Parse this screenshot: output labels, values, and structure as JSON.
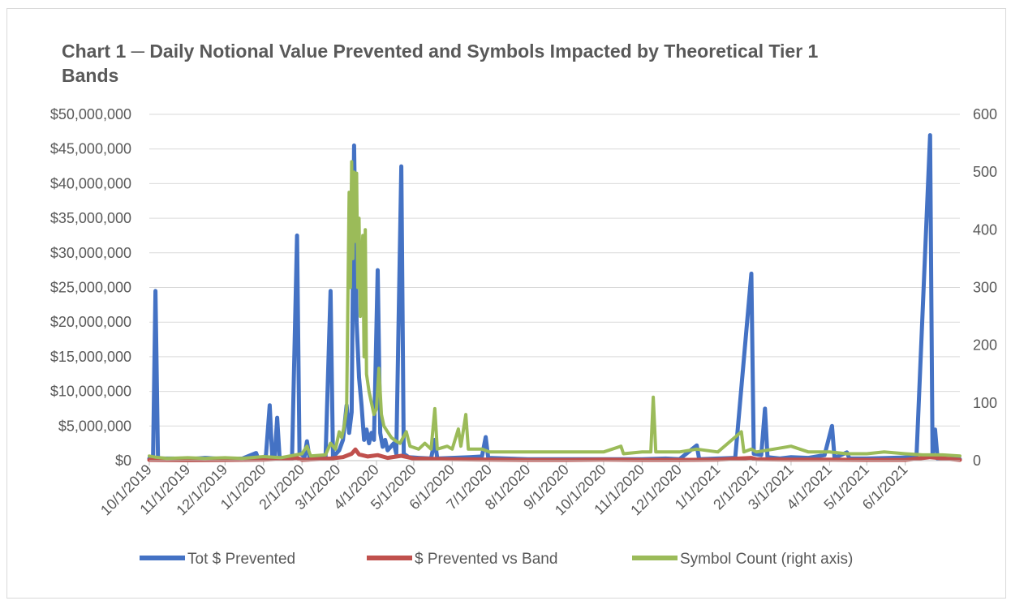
{
  "chart_data": {
    "type": "line",
    "title": "Chart 1 ─ Daily Notional Value Prevented and Symbols Impacted by Theoretical Tier 1 Bands",
    "xlabel": "",
    "ylabel": "",
    "y2label": "",
    "x_tick_labels": [
      "10/1/2019",
      "11/1/2019",
      "12/1/2019",
      "1/1/2020",
      "2/1/2020",
      "3/1/2020",
      "4/1/2020",
      "5/1/2020",
      "6/1/2020",
      "7/1/2020",
      "8/1/2020",
      "9/1/2020",
      "10/1/2020",
      "11/1/2020",
      "12/1/2020",
      "1/1/2021",
      "2/1/2021",
      "3/1/2021",
      "4/1/2021",
      "5/1/2021",
      "6/1/2021"
    ],
    "x_range": [
      "10/1/2019",
      "7/15/2021"
    ],
    "ylim": [
      0,
      50000000
    ],
    "y_tick_labels": [
      "$0",
      "$5,000,000",
      "$10,000,000",
      "$15,000,000",
      "$20,000,000",
      "$25,000,000",
      "$30,000,000",
      "$35,000,000",
      "$40,000,000",
      "$45,000,000",
      "$50,000,000"
    ],
    "y2lim": [
      0,
      600
    ],
    "y2_tick_labels": [
      "0",
      "100",
      "200",
      "300",
      "400",
      "500",
      "600"
    ],
    "grid": "horizontal",
    "legend_position": "bottom",
    "series": [
      {
        "name": "Tot $ Prevented",
        "axis": "left",
        "color": "#4472c4",
        "points": [
          [
            "10/1/2019",
            300000
          ],
          [
            "10/4/2019",
            200000
          ],
          [
            "10/6/2019",
            24500000
          ],
          [
            "10/8/2019",
            300000
          ],
          [
            "10/20/2019",
            300000
          ],
          [
            "11/1/2019",
            200000
          ],
          [
            "11/15/2019",
            400000
          ],
          [
            "12/1/2019",
            200000
          ],
          [
            "12/15/2019",
            300000
          ],
          [
            "12/26/2019",
            1100000
          ],
          [
            "12/28/2019",
            200000
          ],
          [
            "1/1/2020",
            300000
          ],
          [
            "1/3/2020",
            800000
          ],
          [
            "1/6/2020",
            8000000
          ],
          [
            "1/8/2020",
            500000
          ],
          [
            "1/10/2020",
            300000
          ],
          [
            "1/12/2020",
            6200000
          ],
          [
            "1/14/2020",
            400000
          ],
          [
            "1/24/2020",
            300000
          ],
          [
            "1/28/2020",
            32500000
          ],
          [
            "1/30/2020",
            1200000
          ],
          [
            "2/3/2020",
            500000
          ],
          [
            "2/5/2020",
            2800000
          ],
          [
            "2/7/2020",
            400000
          ],
          [
            "2/20/2020",
            400000
          ],
          [
            "2/24/2020",
            24500000
          ],
          [
            "2/26/2020",
            500000
          ],
          [
            "3/2/2020",
            1500000
          ],
          [
            "3/5/2020",
            3000000
          ],
          [
            "3/8/2020",
            8000000
          ],
          [
            "3/10/2020",
            4000000
          ],
          [
            "3/12/2020",
            7000000
          ],
          [
            "3/14/2020",
            45500000
          ],
          [
            "3/16/2020",
            20000000
          ],
          [
            "3/18/2020",
            12000000
          ],
          [
            "3/20/2020",
            8000000
          ],
          [
            "3/22/2020",
            3000000
          ],
          [
            "3/24/2020",
            4500000
          ],
          [
            "3/26/2020",
            2500000
          ],
          [
            "3/28/2020",
            4000000
          ],
          [
            "3/30/2020",
            3000000
          ],
          [
            "4/2/2020",
            27500000
          ],
          [
            "4/4/2020",
            4000000
          ],
          [
            "4/6/2020",
            2000000
          ],
          [
            "4/8/2020",
            3000000
          ],
          [
            "4/10/2020",
            1500000
          ],
          [
            "4/15/2020",
            2500000
          ],
          [
            "4/17/2020",
            1000000
          ],
          [
            "4/21/2020",
            42500000
          ],
          [
            "4/23/2020",
            1000000
          ],
          [
            "4/27/2020",
            500000
          ],
          [
            "5/5/2020",
            400000
          ],
          [
            "5/15/2020",
            300000
          ],
          [
            "5/18/2020",
            3000000
          ],
          [
            "5/20/2020",
            300000
          ],
          [
            "6/1/2020",
            400000
          ],
          [
            "6/15/2020",
            500000
          ],
          [
            "6/25/2020",
            600000
          ],
          [
            "6/28/2020",
            3400000
          ],
          [
            "6/30/2020",
            400000
          ],
          [
            "7/15/2020",
            300000
          ],
          [
            "8/1/2020",
            200000
          ],
          [
            "9/1/2020",
            200000
          ],
          [
            "10/1/2020",
            200000
          ],
          [
            "11/1/2020",
            200000
          ],
          [
            "11/20/2020",
            300000
          ],
          [
            "12/1/2020",
            200000
          ],
          [
            "12/15/2020",
            2200000
          ],
          [
            "12/17/2020",
            200000
          ],
          [
            "1/1/2021",
            300000
          ],
          [
            "1/15/2021",
            400000
          ],
          [
            "1/28/2021",
            27000000
          ],
          [
            "1/30/2021",
            1000000
          ],
          [
            "2/5/2021",
            800000
          ],
          [
            "2/8/2021",
            7500000
          ],
          [
            "2/10/2021",
            500000
          ],
          [
            "2/20/2021",
            300000
          ],
          [
            "3/1/2021",
            500000
          ],
          [
            "3/15/2021",
            400000
          ],
          [
            "3/28/2021",
            800000
          ],
          [
            "4/3/2021",
            5000000
          ],
          [
            "4/5/2021",
            400000
          ],
          [
            "4/15/2021",
            1200000
          ],
          [
            "4/17/2021",
            300000
          ],
          [
            "5/1/2021",
            300000
          ],
          [
            "5/20/2021",
            400000
          ],
          [
            "6/10/2021",
            500000
          ],
          [
            "6/21/2021",
            47000000
          ],
          [
            "6/23/2021",
            800000
          ],
          [
            "6/25/2021",
            4500000
          ],
          [
            "6/27/2021",
            300000
          ],
          [
            "7/15/2021",
            200000
          ]
        ]
      },
      {
        "name": "$ Prevented vs Band",
        "axis": "left",
        "color": "#c0504d",
        "points": [
          [
            "10/1/2019",
            100000
          ],
          [
            "11/1/2019",
            60000
          ],
          [
            "12/1/2019",
            80000
          ],
          [
            "1/1/2020",
            150000
          ],
          [
            "1/28/2020",
            400000
          ],
          [
            "2/1/2020",
            100000
          ],
          [
            "2/24/2020",
            300000
          ],
          [
            "3/5/2020",
            500000
          ],
          [
            "3/12/2020",
            1000000
          ],
          [
            "3/15/2020",
            1600000
          ],
          [
            "3/18/2020",
            900000
          ],
          [
            "3/25/2020",
            600000
          ],
          [
            "4/2/2020",
            800000
          ],
          [
            "4/10/2020",
            400000
          ],
          [
            "4/21/2020",
            700000
          ],
          [
            "5/1/2020",
            300000
          ],
          [
            "6/1/2020",
            200000
          ],
          [
            "7/1/2020",
            150000
          ],
          [
            "8/1/2020",
            100000
          ],
          [
            "9/1/2020",
            100000
          ],
          [
            "10/1/2020",
            150000
          ],
          [
            "11/1/2020",
            100000
          ],
          [
            "12/1/2020",
            100000
          ],
          [
            "1/1/2021",
            150000
          ],
          [
            "1/28/2021",
            400000
          ],
          [
            "2/1/2021",
            200000
          ],
          [
            "3/1/2021",
            150000
          ],
          [
            "4/1/2021",
            150000
          ],
          [
            "5/1/2021",
            100000
          ],
          [
            "6/1/2021",
            100000
          ],
          [
            "6/21/2021",
            500000
          ],
          [
            "7/15/2021",
            100000
          ]
        ]
      },
      {
        "name": "Symbol Count (right axis)",
        "axis": "right",
        "color": "#9bbb59",
        "points": [
          [
            "10/1/2019",
            8
          ],
          [
            "10/6/2019",
            6
          ],
          [
            "10/15/2019",
            4
          ],
          [
            "11/1/2019",
            5
          ],
          [
            "11/15/2019",
            4
          ],
          [
            "12/1/2019",
            5
          ],
          [
            "12/15/2019",
            4
          ],
          [
            "1/1/2020",
            7
          ],
          [
            "1/15/2020",
            5
          ],
          [
            "2/1/2020",
            12
          ],
          [
            "2/5/2020",
            25
          ],
          [
            "2/8/2020",
            8
          ],
          [
            "2/20/2020",
            10
          ],
          [
            "2/24/2020",
            30
          ],
          [
            "2/28/2020",
            20
          ],
          [
            "3/2/2020",
            50
          ],
          [
            "3/4/2020",
            40
          ],
          [
            "3/6/2020",
            60
          ],
          [
            "3/8/2020",
            90
          ],
          [
            "3/10/2020",
            465
          ],
          [
            "3/11/2020",
            300
          ],
          [
            "3/12/2020",
            518
          ],
          [
            "3/13/2020",
            350
          ],
          [
            "3/14/2020",
            500
          ],
          [
            "3/15/2020",
            380
          ],
          [
            "3/16/2020",
            498
          ],
          [
            "3/17/2020",
            300
          ],
          [
            "3/18/2020",
            420
          ],
          [
            "3/19/2020",
            250
          ],
          [
            "3/20/2020",
            330
          ],
          [
            "3/21/2020",
            390
          ],
          [
            "3/22/2020",
            180
          ],
          [
            "3/23/2020",
            400
          ],
          [
            "3/24/2020",
            150
          ],
          [
            "3/26/2020",
            120
          ],
          [
            "3/28/2020",
            100
          ],
          [
            "3/30/2020",
            80
          ],
          [
            "4/1/2020",
            90
          ],
          [
            "4/3/2020",
            160
          ],
          [
            "4/5/2020",
            80
          ],
          [
            "4/7/2020",
            60
          ],
          [
            "4/10/2020",
            50
          ],
          [
            "4/13/2020",
            40
          ],
          [
            "4/16/2020",
            35
          ],
          [
            "4/20/2020",
            30
          ],
          [
            "4/25/2020",
            50
          ],
          [
            "4/28/2020",
            25
          ],
          [
            "5/5/2020",
            20
          ],
          [
            "5/10/2020",
            30
          ],
          [
            "5/15/2020",
            20
          ],
          [
            "5/18/2020",
            90
          ],
          [
            "5/20/2020",
            20
          ],
          [
            "5/28/2020",
            25
          ],
          [
            "6/1/2020",
            20
          ],
          [
            "6/6/2020",
            55
          ],
          [
            "6/8/2020",
            25
          ],
          [
            "6/12/2020",
            80
          ],
          [
            "6/14/2020",
            20
          ],
          [
            "6/25/2020",
            20
          ],
          [
            "7/1/2020",
            15
          ],
          [
            "8/1/2020",
            15
          ],
          [
            "9/1/2020",
            15
          ],
          [
            "10/1/2020",
            15
          ],
          [
            "10/15/2020",
            25
          ],
          [
            "10/17/2020",
            12
          ],
          [
            "11/1/2020",
            15
          ],
          [
            "11/8/2020",
            15
          ],
          [
            "11/10/2020",
            110
          ],
          [
            "11/12/2020",
            15
          ],
          [
            "12/1/2020",
            15
          ],
          [
            "12/15/2020",
            20
          ],
          [
            "1/1/2021",
            15
          ],
          [
            "1/20/2021",
            50
          ],
          [
            "1/22/2021",
            15
          ],
          [
            "1/28/2021",
            20
          ],
          [
            "2/1/2021",
            15
          ],
          [
            "2/15/2021",
            20
          ],
          [
            "3/1/2021",
            25
          ],
          [
            "3/15/2021",
            15
          ],
          [
            "4/1/2021",
            15
          ],
          [
            "4/15/2021",
            12
          ],
          [
            "5/1/2021",
            12
          ],
          [
            "5/15/2021",
            15
          ],
          [
            "6/1/2021",
            12
          ],
          [
            "6/15/2021",
            10
          ],
          [
            "7/1/2021",
            10
          ],
          [
            "7/15/2021",
            8
          ]
        ]
      }
    ]
  }
}
